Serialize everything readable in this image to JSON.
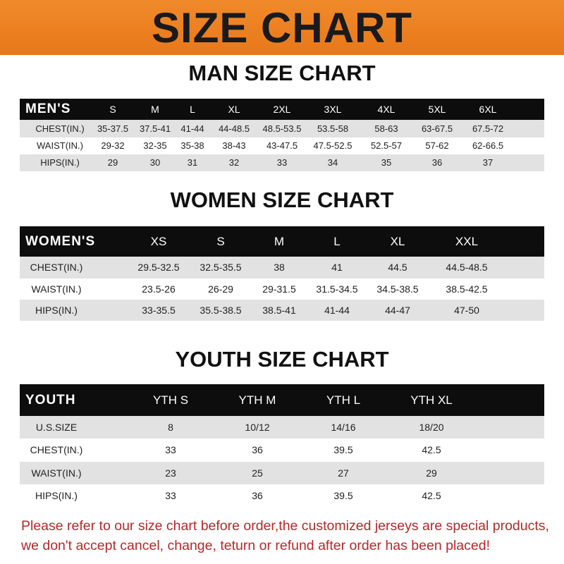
{
  "title": "SIZE CHART",
  "men": {
    "title": "MAN SIZE CHART",
    "header": [
      "MEN'S",
      "S",
      "M",
      "L",
      "XL",
      "2XL",
      "3XL",
      "4XL",
      "5XL",
      "6XL"
    ],
    "rows": [
      [
        "CHEST(IN.)",
        "35-37.5",
        "37.5-41",
        "41-44",
        "44-48.5",
        "48.5-53.5",
        "53.5-58",
        "58-63",
        "63-67.5",
        "67.5-72"
      ],
      [
        "WAIST(IN.)",
        "29-32",
        "32-35",
        "35-38",
        "38-43",
        "43-47.5",
        "47.5-52.5",
        "52.5-57",
        "57-62",
        "62-66.5"
      ],
      [
        "HIPS(IN.)",
        "29",
        "30",
        "31",
        "32",
        "33",
        "34",
        "35",
        "36",
        "37"
      ]
    ]
  },
  "women": {
    "title": "WOMEN SIZE CHART",
    "header": [
      "WOMEN'S",
      "XS",
      "S",
      "M",
      "L",
      "XL",
      "XXL"
    ],
    "rows": [
      [
        "CHEST(IN.)",
        "29.5-32.5",
        "32.5-35.5",
        "38",
        "41",
        "44.5",
        "44.5-48.5"
      ],
      [
        "WAIST(IN.)",
        "23.5-26",
        "26-29",
        "29-31.5",
        "31.5-34.5",
        "34.5-38.5",
        "38.5-42.5"
      ],
      [
        "HIPS(IN.)",
        "33-35.5",
        "35.5-38.5",
        "38.5-41",
        "41-44",
        "44-47",
        "47-50"
      ]
    ]
  },
  "youth": {
    "title": "YOUTH SIZE CHART",
    "header": [
      "YOUTH",
      "YTH S",
      "YTH M",
      "YTH L",
      "YTH XL"
    ],
    "rows": [
      [
        "U.S.SIZE",
        "8",
        "10/12",
        "14/16",
        "18/20"
      ],
      [
        "CHEST(IN.)",
        "33",
        "36",
        "39.5",
        "42.5"
      ],
      [
        "WAIST(IN.)",
        "23",
        "25",
        "27",
        "29"
      ],
      [
        "HIPS(IN.)",
        "33",
        "36",
        "39.5",
        "42.5"
      ]
    ]
  },
  "notice": [
    "Please refer to our size chart before order,the customized jerseys are special products,",
    "we don't accept cancel, change, teturn or refund after order has been placed!"
  ],
  "colors": {
    "banner": "#ee8322",
    "header": "#0d0d0d",
    "stripe": "#e2e2e2",
    "notice": "#b8272a"
  }
}
